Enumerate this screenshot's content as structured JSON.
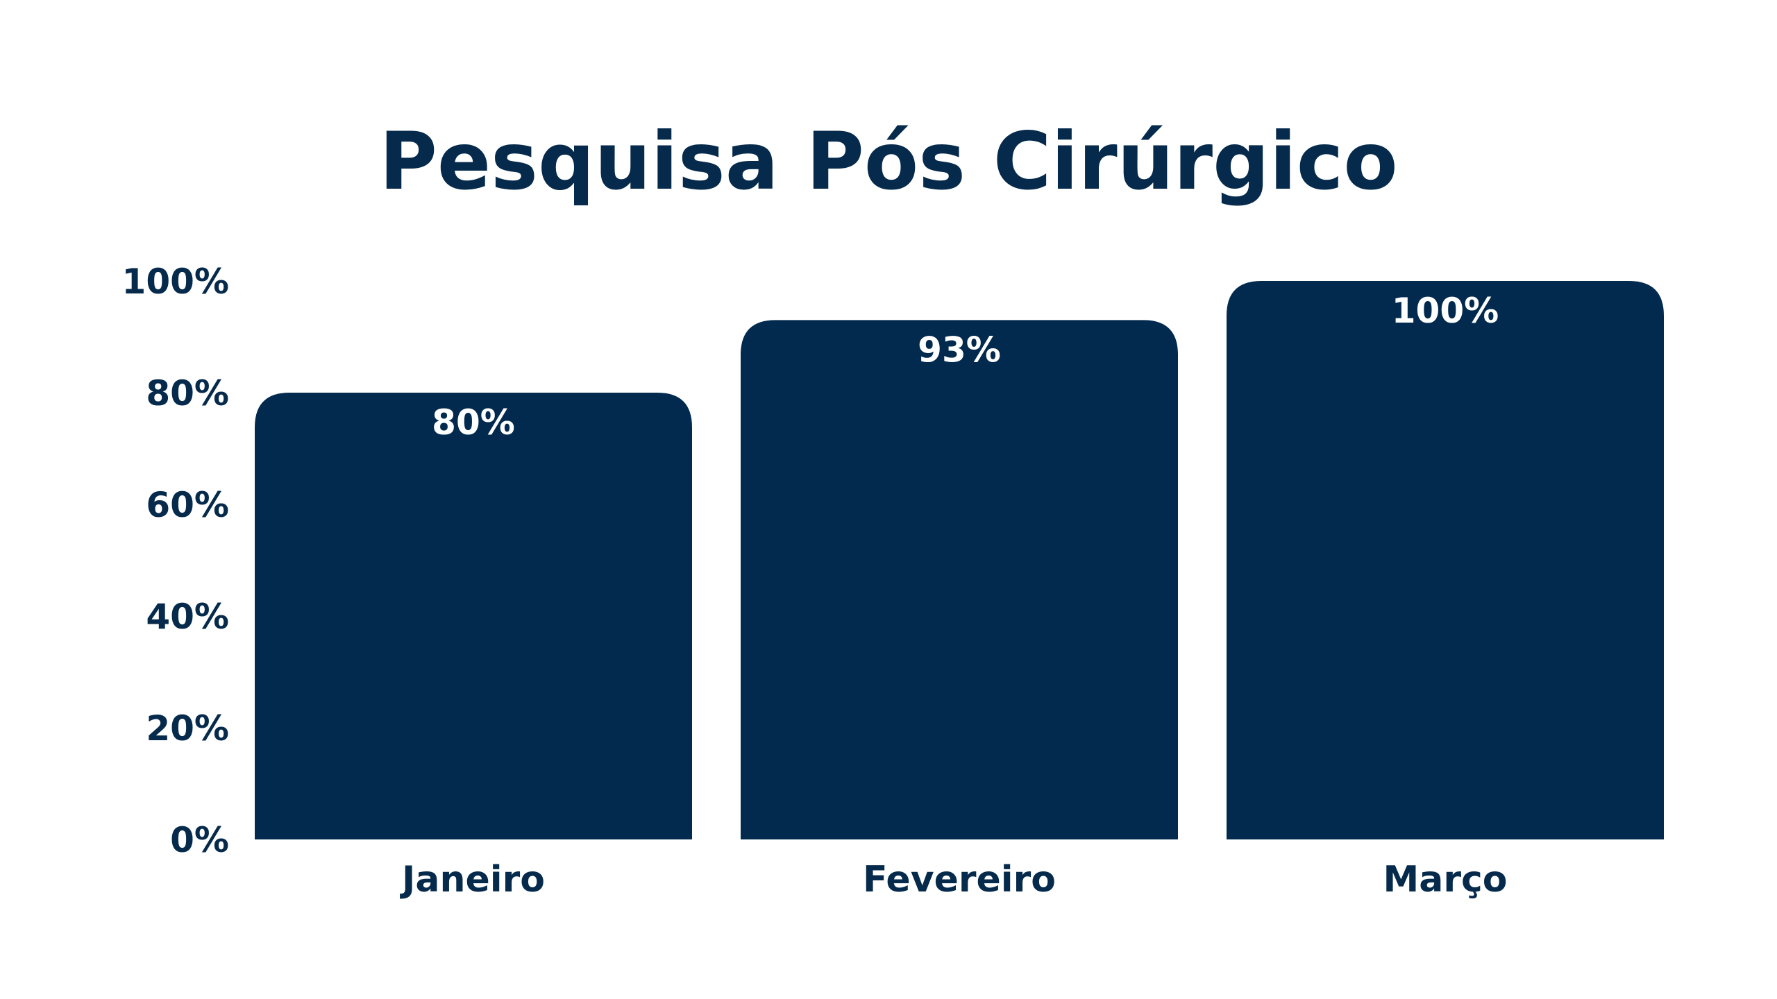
{
  "colors": {
    "background": "#ffffff",
    "bar": "#022a4e",
    "text": "#062a4c",
    "bar_label": "#ffffff"
  },
  "chart_data": {
    "type": "bar",
    "title": "Pesquisa Pós Cirúrgico",
    "xlabel": "",
    "ylabel": "",
    "categories": [
      "Janeiro",
      "Fevereiro",
      "Março"
    ],
    "values": [
      80,
      93,
      100
    ],
    "data_labels": [
      "80%",
      "93%",
      "100%"
    ],
    "ylim": [
      0,
      100
    ],
    "yticks": [
      0,
      20,
      40,
      60,
      80,
      100
    ],
    "ytick_labels": [
      "0%",
      "20%",
      "40%",
      "60%",
      "80%",
      "100%"
    ],
    "grid": false,
    "legend": "none"
  }
}
